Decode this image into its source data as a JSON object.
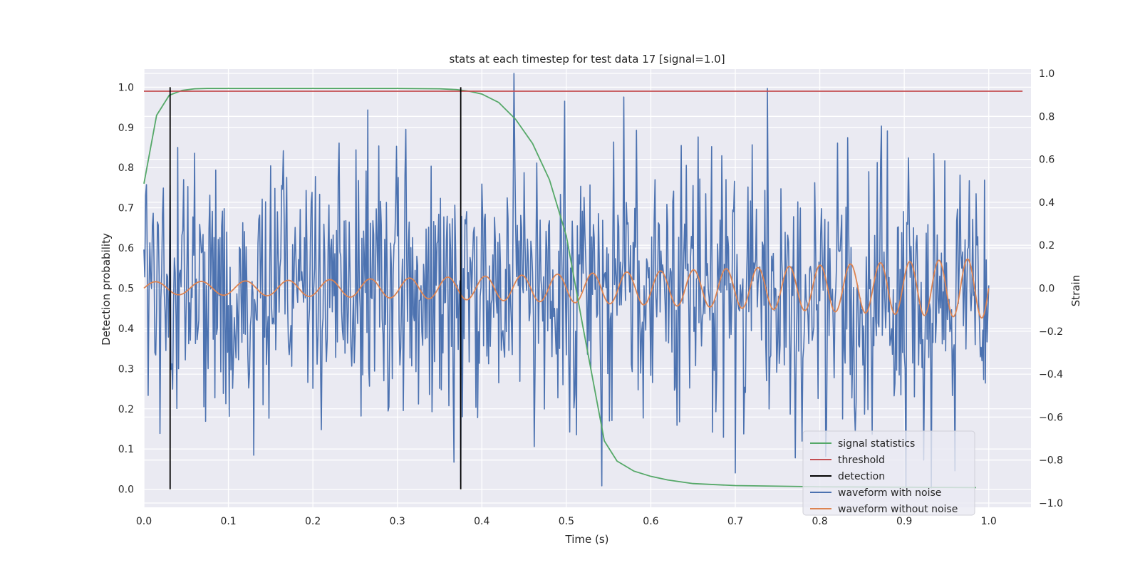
{
  "chart_data": {
    "type": "line",
    "title": "stats at each timestep for test data 17 [signal=1.0]",
    "xlabel": "Time (s)",
    "ylabel_left": "Detection probability",
    "ylabel_right": "Strain",
    "xlim": [
      0.0,
      1.05
    ],
    "ylim_left": [
      -0.045,
      1.045
    ],
    "ylim_right": [
      -1.02,
      1.02
    ],
    "x_ticks": [
      "0.0",
      "0.1",
      "0.2",
      "0.3",
      "0.4",
      "0.5",
      "0.6",
      "0.7",
      "0.8",
      "0.9",
      "1.0"
    ],
    "y_left_ticks": [
      "0.0",
      "0.1",
      "0.2",
      "0.3",
      "0.4",
      "0.5",
      "0.6",
      "0.7",
      "0.8",
      "0.9",
      "1.0"
    ],
    "y_right_ticks": [
      "−1.0",
      "−0.8",
      "−0.6",
      "−0.4",
      "−0.2",
      "0.0",
      "0.2",
      "0.4",
      "0.6",
      "0.8",
      "1.0"
    ],
    "grid": true,
    "legend_position": "lower right",
    "colors": {
      "background": "#eaeaf2",
      "signal_statistics": "#55a868",
      "threshold": "#c44e52",
      "detection": "#000000",
      "waveform_with_noise": "#4c72b0",
      "waveform_without_noise": "#dd8452"
    },
    "series": [
      {
        "name": "signal statistics",
        "axis": "left",
        "x": [
          0.0,
          0.015,
          0.03,
          0.045,
          0.06,
          0.075,
          0.09,
          0.1,
          0.15,
          0.2,
          0.25,
          0.3,
          0.35,
          0.37,
          0.385,
          0.4,
          0.42,
          0.44,
          0.46,
          0.48,
          0.5,
          0.52,
          0.545,
          0.56,
          0.58,
          0.6,
          0.62,
          0.65,
          0.7,
          0.8,
          0.9,
          0.985
        ],
        "y": [
          0.76,
          0.93,
          0.98,
          0.992,
          0.996,
          0.997,
          0.997,
          0.997,
          0.997,
          0.997,
          0.997,
          0.997,
          0.996,
          0.994,
          0.99,
          0.983,
          0.962,
          0.92,
          0.86,
          0.77,
          0.63,
          0.4,
          0.12,
          0.07,
          0.045,
          0.032,
          0.023,
          0.014,
          0.009,
          0.006,
          0.005,
          0.004
        ]
      },
      {
        "name": "threshold",
        "axis": "left",
        "x": [
          0.0,
          1.04
        ],
        "y": [
          0.99,
          0.99
        ]
      },
      {
        "name": "detection",
        "axis": "left",
        "x": [
          0.031,
          0.375
        ],
        "y_range": [
          0.0,
          1.0
        ]
      },
      {
        "name": "waveform with noise",
        "axis": "right",
        "x_range": [
          0.0,
          1.0
        ],
        "n_points": 1000,
        "peaks": [
          {
            "x": 0.0,
            "y": 0.18
          },
          {
            "x": 0.031,
            "y": 0.48
          },
          {
            "x": 0.085,
            "y": 0.55
          },
          {
            "x": 0.265,
            "y": 0.83
          },
          {
            "x": 0.375,
            "y": -0.9
          },
          {
            "x": 0.438,
            "y": 1.0
          },
          {
            "x": 0.542,
            "y": -0.92
          },
          {
            "x": 0.568,
            "y": 0.89
          },
          {
            "x": 0.7,
            "y": -0.86
          },
          {
            "x": 0.738,
            "y": 0.93
          },
          {
            "x": 0.932,
            "y": -0.93
          },
          {
            "x": 0.96,
            "y": -0.85
          },
          {
            "x": 0.998,
            "y": -0.25
          }
        ],
        "y_min": -0.93,
        "y_max": 1.0
      },
      {
        "name": "waveform without noise",
        "axis": "right",
        "x_range": [
          0.0,
          1.0
        ],
        "amplitude_start": 0.03,
        "amplitude_end": 0.14,
        "frequency_start_hz": 18,
        "frequency_end_hz": 30,
        "peaks": [
          {
            "x": 0.5,
            "y": 0.085
          },
          {
            "x": 0.75,
            "y": 0.105
          },
          {
            "x": 0.977,
            "y": 0.14
          }
        ],
        "troughs": [
          {
            "x": 0.41,
            "y": -0.08
          },
          {
            "x": 0.95,
            "y": -0.13
          }
        ]
      }
    ]
  },
  "legend": {
    "items": [
      {
        "label": "signal statistics",
        "color": "#55a868"
      },
      {
        "label": "threshold",
        "color": "#c44e52"
      },
      {
        "label": "detection",
        "color": "#000000"
      },
      {
        "label": "waveform with noise",
        "color": "#4c72b0"
      },
      {
        "label": "waveform without noise",
        "color": "#dd8452"
      }
    ]
  }
}
